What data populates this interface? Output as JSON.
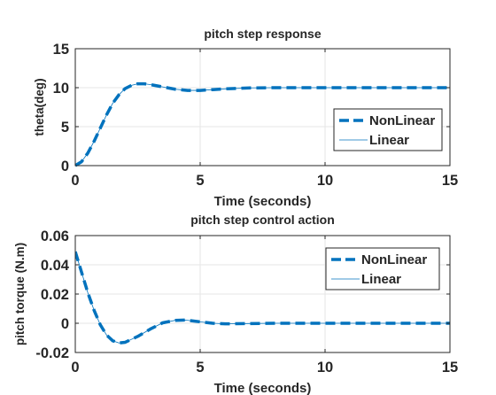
{
  "chart_data": [
    {
      "type": "line",
      "title": "pitch step response",
      "xlabel": "Time (seconds)",
      "ylabel": "theta(deg)",
      "xlim": [
        0,
        15
      ],
      "ylim": [
        0,
        15
      ],
      "xticks": [
        0,
        5,
        10,
        15
      ],
      "yticks": [
        0,
        5,
        10,
        15
      ],
      "xtick_labels": [
        "0",
        "5",
        "10",
        "15"
      ],
      "ytick_labels": [
        "0",
        "5",
        "10",
        "15"
      ],
      "grid": true,
      "legend_position": "right",
      "series": [
        {
          "name": "NonLinear",
          "style": "dashed",
          "x": [
            0,
            0.25,
            0.5,
            0.75,
            1.0,
            1.25,
            1.5,
            1.75,
            2.0,
            2.25,
            2.5,
            2.75,
            3.0,
            3.5,
            4.0,
            4.5,
            5.0,
            5.5,
            6.0,
            7.0,
            8.0,
            9.0,
            10.0,
            11.0,
            12.0,
            13.0,
            14.0,
            15.0
          ],
          "y": [
            0,
            0.5,
            1.6,
            3.1,
            4.8,
            6.5,
            8.0,
            9.1,
            9.9,
            10.3,
            10.5,
            10.5,
            10.4,
            10.1,
            9.8,
            9.65,
            9.65,
            9.75,
            9.85,
            9.97,
            10.0,
            10.0,
            10.0,
            10.0,
            10.0,
            10.0,
            10.0,
            10.0
          ]
        },
        {
          "name": "Linear",
          "style": "solid",
          "x": [
            0,
            0.25,
            0.5,
            0.75,
            1.0,
            1.25,
            1.5,
            1.75,
            2.0,
            2.25,
            2.5,
            2.75,
            3.0,
            3.5,
            4.0,
            4.5,
            5.0,
            5.5,
            6.0,
            7.0,
            8.0,
            9.0,
            10.0,
            11.0,
            12.0,
            13.0,
            14.0,
            15.0
          ],
          "y": [
            0,
            0.5,
            1.6,
            3.1,
            4.8,
            6.5,
            8.0,
            9.1,
            9.9,
            10.3,
            10.5,
            10.5,
            10.4,
            10.1,
            9.8,
            9.65,
            9.65,
            9.75,
            9.85,
            9.97,
            10.0,
            10.0,
            10.0,
            10.0,
            10.0,
            10.0,
            10.0,
            10.0
          ]
        }
      ]
    },
    {
      "type": "line",
      "title": "pitch step control action",
      "xlabel": "Time (seconds)",
      "ylabel": "pitch torque (N.m)",
      "xlim": [
        0,
        15
      ],
      "ylim": [
        -0.02,
        0.06
      ],
      "xticks": [
        0,
        5,
        10,
        15
      ],
      "yticks": [
        -0.02,
        0,
        0.02,
        0.04,
        0.06
      ],
      "xtick_labels": [
        "0",
        "5",
        "10",
        "15"
      ],
      "ytick_labels": [
        "-0.02",
        "0",
        "0.02",
        "0.04",
        "0.06"
      ],
      "grid": true,
      "legend_position": "top-right",
      "series": [
        {
          "name": "NonLinear",
          "style": "dashed",
          "x": [
            0,
            0.25,
            0.5,
            0.75,
            1.0,
            1.25,
            1.5,
            1.75,
            2.0,
            2.5,
            3.0,
            3.5,
            4.0,
            4.4,
            5.0,
            5.5,
            6.0,
            7.0,
            8.0,
            9.0,
            10.0,
            11.0,
            12.0,
            13.0,
            14.0,
            15.0
          ],
          "y": [
            0.049,
            0.035,
            0.021,
            0.009,
            -0.001,
            -0.008,
            -0.012,
            -0.0135,
            -0.013,
            -0.009,
            -0.004,
            0.0003,
            0.002,
            0.0022,
            0.001,
            0.0,
            -0.0004,
            -0.0002,
            0.0,
            0.0,
            0.0,
            0.0,
            0.0,
            0.0,
            0.0,
            0.0
          ]
        },
        {
          "name": "Linear",
          "style": "solid",
          "x": [
            0,
            0.25,
            0.5,
            0.75,
            1.0,
            1.25,
            1.5,
            1.75,
            2.0,
            2.5,
            3.0,
            3.5,
            4.0,
            4.4,
            5.0,
            5.5,
            6.0,
            7.0,
            8.0,
            9.0,
            10.0,
            11.0,
            12.0,
            13.0,
            14.0,
            15.0
          ],
          "y": [
            0.049,
            0.035,
            0.021,
            0.009,
            -0.001,
            -0.008,
            -0.012,
            -0.0135,
            -0.013,
            -0.009,
            -0.004,
            0.0003,
            0.002,
            0.0022,
            0.001,
            0.0,
            -0.0004,
            -0.0002,
            0.0,
            0.0,
            0.0,
            0.0,
            0.0,
            0.0,
            0.0,
            0.0
          ]
        }
      ]
    }
  ],
  "colors": {
    "series": "#0072bd",
    "axes": "#262626",
    "grid": "#e6e6e6"
  }
}
